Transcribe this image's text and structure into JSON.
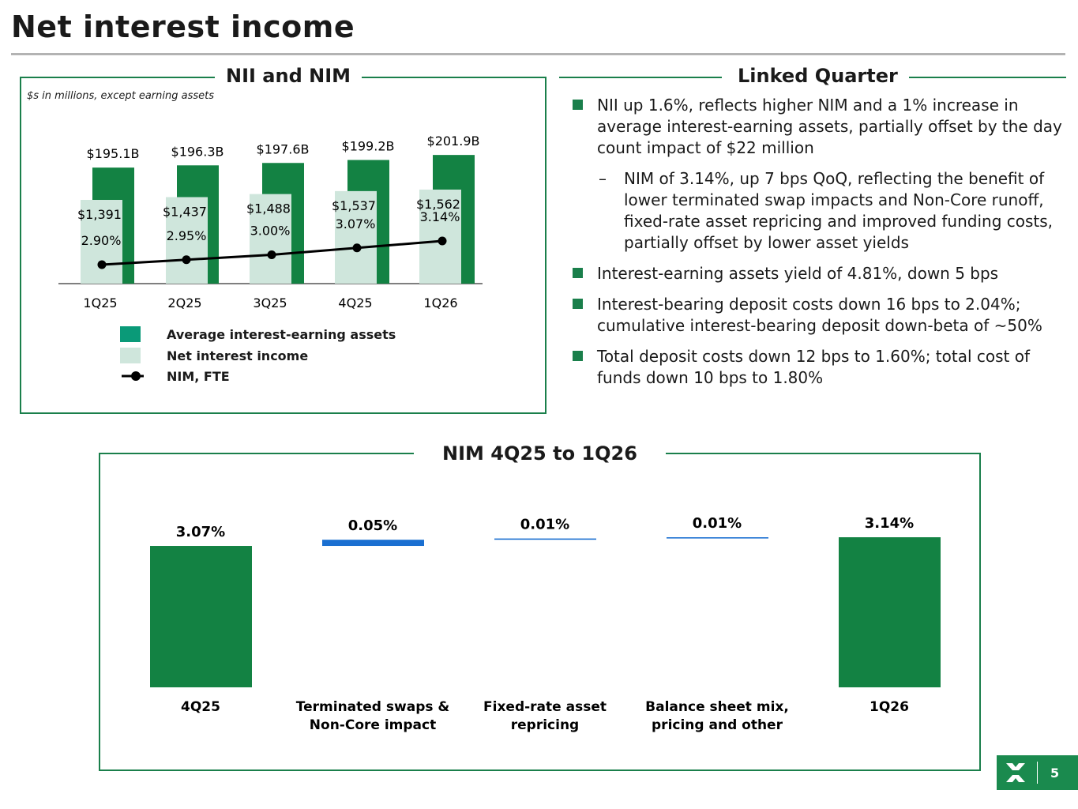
{
  "page_title": "Net interest income",
  "page_number": "5",
  "nii_panel": {
    "title": "NII and NIM",
    "subtitle": "$s in millions, except earning assets",
    "legend": [
      "Average interest-earning assets",
      "Net interest income",
      "NIM, FTE"
    ]
  },
  "linked_quarter": {
    "title": "Linked Quarter",
    "bullets": [
      {
        "text": "NII up 1.6%, reflects higher NIM and a 1% increase in average interest-earning assets, partially offset by the day count impact of $22 million",
        "sub": [
          "NIM of 3.14%, up 7 bps QoQ, reflecting the benefit of lower terminated swap impacts and Non-Core runoff, fixed-rate asset repricing and improved funding costs, partially offset by lower asset yields"
        ]
      },
      {
        "text": "Interest-earning assets yield of 4.81%, down 5 bps",
        "sub": []
      },
      {
        "text": "Interest-bearing deposit costs down 16 bps to 2.04%; cumulative interest-bearing deposit down-beta of ~50%",
        "sub": []
      },
      {
        "text": "Total deposit costs down 12 bps to 1.60%; total cost of funds down 10 bps to 1.80%",
        "sub": []
      }
    ]
  },
  "colors": {
    "assets": "#138243",
    "nii": "#cfe6dc",
    "nim": "#000000",
    "delta": "#1a6fd1",
    "brand": "#1a8a4e",
    "legend_assets": "#0a9a78"
  },
  "chart_data": [
    {
      "type": "bar",
      "title": "NII and NIM",
      "categories": [
        "1Q25",
        "2Q25",
        "3Q25",
        "4Q25",
        "1Q26"
      ],
      "series": [
        {
          "name": "Average interest-earning assets",
          "unit": "$B",
          "values": [
            195.1,
            196.3,
            197.6,
            199.2,
            201.9
          ],
          "labels": [
            "$195.1B",
            "$196.3B",
            "$197.6B",
            "$199.2B",
            "$201.9B"
          ]
        },
        {
          "name": "Net interest income",
          "unit": "$M",
          "values": [
            1391,
            1437,
            1488,
            1537,
            1562
          ],
          "labels": [
            "$1,391",
            "$1,437",
            "$1,488",
            "$1,537",
            "$1,562"
          ]
        },
        {
          "name": "NIM, FTE",
          "type": "line",
          "unit": "%",
          "values": [
            2.9,
            2.95,
            3.0,
            3.07,
            3.14
          ],
          "labels": [
            "2.90%",
            "2.95%",
            "3.00%",
            "3.07%",
            "3.14%"
          ]
        }
      ]
    },
    {
      "type": "bar",
      "subtype": "waterfall",
      "title": "NIM 4Q25 to 1Q26",
      "categories": [
        "4Q25",
        "Terminated swaps & Non-Core impact",
        "Fixed-rate asset repricing",
        "Balance sheet mix, pricing and other",
        "1Q26"
      ],
      "values": [
        3.07,
        0.05,
        0.01,
        0.01,
        3.14
      ],
      "kinds": [
        "total",
        "delta",
        "delta",
        "delta",
        "total"
      ],
      "labels": [
        "3.07%",
        "0.05%",
        "0.01%",
        "0.01%",
        "3.14%"
      ]
    }
  ]
}
